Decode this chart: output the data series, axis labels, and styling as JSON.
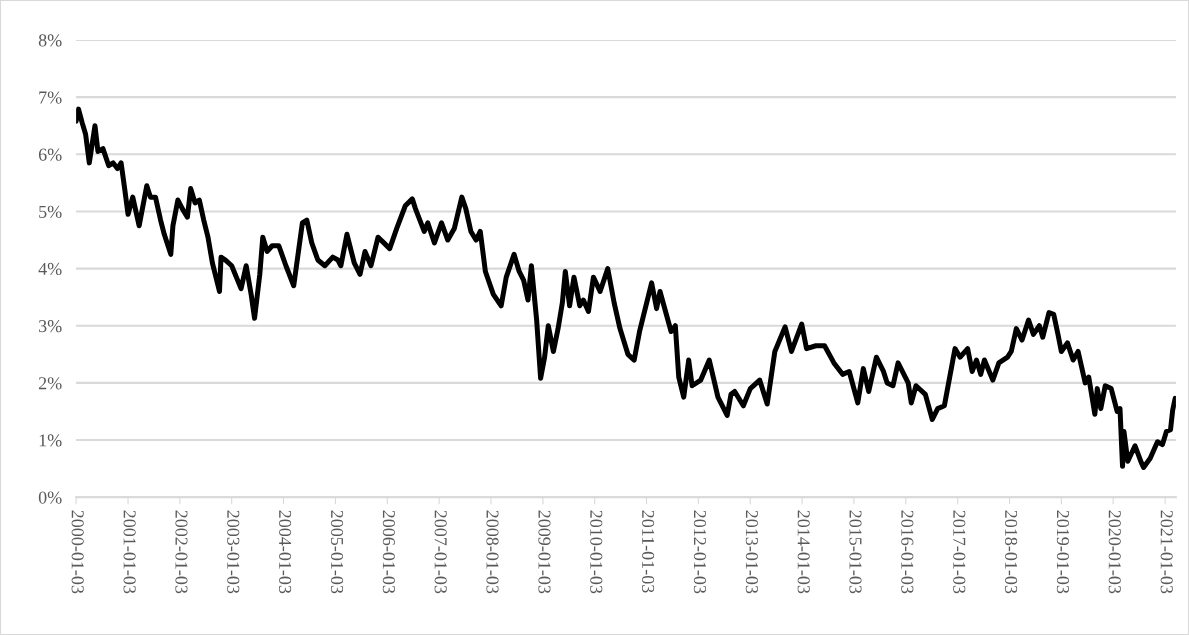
{
  "chart_data": {
    "type": "line",
    "x": [
      "2000-01-03",
      "2000-01-20",
      "2000-02-15",
      "2000-03-10",
      "2000-04-05",
      "2000-05-15",
      "2000-06-05",
      "2000-07-10",
      "2000-08-20",
      "2000-09-20",
      "2000-10-20",
      "2000-11-15",
      "2000-12-10",
      "2001-01-03",
      "2001-02-05",
      "2001-03-22",
      "2001-05-15",
      "2001-06-10",
      "2001-07-15",
      "2001-08-20",
      "2001-09-15",
      "2001-10-31",
      "2001-11-15",
      "2001-12-20",
      "2002-01-20",
      "2002-02-25",
      "2002-03-20",
      "2002-04-20",
      "2002-05-20",
      "2002-06-20",
      "2002-07-20",
      "2002-08-20",
      "2002-10-09",
      "2002-10-20",
      "2002-11-20",
      "2003-01-03",
      "2003-03-10",
      "2003-04-15",
      "2003-05-20",
      "2003-06-13",
      "2003-07-20",
      "2003-08-10",
      "2003-09-10",
      "2003-10-15",
      "2003-12-01",
      "2004-01-20",
      "2004-03-15",
      "2004-04-20",
      "2004-05-15",
      "2004-06-15",
      "2004-07-20",
      "2004-09-01",
      "2004-10-20",
      "2004-12-15",
      "2005-01-20",
      "2005-02-10",
      "2005-03-25",
      "2005-05-15",
      "2005-06-25",
      "2005-07-30",
      "2005-09-10",
      "2005-10-30",
      "2005-12-10",
      "2006-01-20",
      "2006-03-10",
      "2006-05-10",
      "2006-06-28",
      "2006-07-20",
      "2006-09-20",
      "2006-10-15",
      "2006-12-01",
      "2007-01-20",
      "2007-03-05",
      "2007-04-20",
      "2007-06-12",
      "2007-07-10",
      "2007-08-15",
      "2007-09-20",
      "2007-10-20",
      "2007-11-25",
      "2008-01-20",
      "2008-03-15",
      "2008-04-20",
      "2008-06-14",
      "2008-07-20",
      "2008-08-20",
      "2008-09-20",
      "2008-10-14",
      "2008-11-20",
      "2008-12-18",
      "2009-01-15",
      "2009-02-10",
      "2009-03-18",
      "2009-04-20",
      "2009-05-20",
      "2009-06-10",
      "2009-07-10",
      "2009-08-10",
      "2009-09-20",
      "2009-10-15",
      "2009-11-20",
      "2009-12-25",
      "2010-02-10",
      "2010-04-05",
      "2010-05-20",
      "2010-06-30",
      "2010-08-25",
      "2010-10-08",
      "2010-11-15",
      "2011-02-08",
      "2011-03-15",
      "2011-04-08",
      "2011-06-25",
      "2011-07-25",
      "2011-08-18",
      "2011-09-22",
      "2011-10-27",
      "2011-11-20",
      "2012-01-20",
      "2012-03-20",
      "2012-05-20",
      "2012-07-24",
      "2012-08-20",
      "2012-09-15",
      "2012-11-15",
      "2013-01-03",
      "2013-03-10",
      "2013-05-02",
      "2013-06-25",
      "2013-09-05",
      "2013-10-20",
      "2013-12-31",
      "2014-02-03",
      "2014-04-10",
      "2014-06-10",
      "2014-08-15",
      "2014-10-15",
      "2014-12-01",
      "2015-01-30",
      "2015-03-10",
      "2015-04-17",
      "2015-06-10",
      "2015-07-30",
      "2015-08-25",
      "2015-10-05",
      "2015-11-10",
      "2016-01-20",
      "2016-02-11",
      "2016-03-15",
      "2016-05-20",
      "2016-07-08",
      "2016-08-15",
      "2016-10-01",
      "2016-11-30",
      "2016-12-15",
      "2017-01-20",
      "2017-03-14",
      "2017-04-15",
      "2017-05-15",
      "2017-06-14",
      "2017-07-10",
      "2017-09-07",
      "2017-10-20",
      "2017-12-20",
      "2018-01-15",
      "2018-02-20",
      "2018-04-01",
      "2018-05-17",
      "2018-06-20",
      "2018-08-01",
      "2018-08-25",
      "2018-10-08",
      "2018-11-10",
      "2018-12-10",
      "2019-01-03",
      "2019-02-15",
      "2019-03-27",
      "2019-05-01",
      "2019-06-20",
      "2019-07-15",
      "2019-08-27",
      "2019-09-13",
      "2019-10-08",
      "2019-11-08",
      "2019-12-20",
      "2020-01-31",
      "2020-02-20",
      "2020-03-09",
      "2020-03-19",
      "2020-04-15",
      "2020-06-05",
      "2020-07-20",
      "2020-08-04",
      "2020-09-20",
      "2020-11-10",
      "2020-12-15",
      "2021-01-12",
      "2021-02-10",
      "2021-02-25",
      "2021-03-15"
    ],
    "series": [
      {
        "color": "#000000",
        "values": [
          6.58,
          6.79,
          6.55,
          6.35,
          5.85,
          6.5,
          6.05,
          6.1,
          5.8,
          5.85,
          5.75,
          5.85,
          5.4,
          4.95,
          5.25,
          4.75,
          5.45,
          5.25,
          5.25,
          4.85,
          4.6,
          4.25,
          4.75,
          5.2,
          5.05,
          4.9,
          5.4,
          5.15,
          5.2,
          4.85,
          4.55,
          4.1,
          3.6,
          4.2,
          4.15,
          4.05,
          3.65,
          4.05,
          3.55,
          3.13,
          3.9,
          4.55,
          4.3,
          4.4,
          4.4,
          4.05,
          3.7,
          4.35,
          4.8,
          4.85,
          4.45,
          4.15,
          4.05,
          4.2,
          4.15,
          4.05,
          4.6,
          4.1,
          3.9,
          4.3,
          4.05,
          4.55,
          4.45,
          4.35,
          4.7,
          5.1,
          5.22,
          5.05,
          4.65,
          4.8,
          4.45,
          4.8,
          4.5,
          4.7,
          5.25,
          5.05,
          4.65,
          4.5,
          4.65,
          3.95,
          3.55,
          3.35,
          3.85,
          4.25,
          3.95,
          3.8,
          3.45,
          4.05,
          3.1,
          2.08,
          2.45,
          3.0,
          2.55,
          2.95,
          3.4,
          3.95,
          3.35,
          3.85,
          3.35,
          3.45,
          3.25,
          3.85,
          3.6,
          4.0,
          3.4,
          2.95,
          2.5,
          2.4,
          2.9,
          3.75,
          3.3,
          3.6,
          2.9,
          3.0,
          2.1,
          1.75,
          2.4,
          1.95,
          2.05,
          2.4,
          1.75,
          1.43,
          1.8,
          1.85,
          1.6,
          1.9,
          2.05,
          1.63,
          2.55,
          2.98,
          2.55,
          3.03,
          2.6,
          2.65,
          2.65,
          2.35,
          2.15,
          2.2,
          1.65,
          2.25,
          1.85,
          2.45,
          2.2,
          2.0,
          1.95,
          2.35,
          2.0,
          1.65,
          1.95,
          1.8,
          1.36,
          1.55,
          1.6,
          2.4,
          2.6,
          2.45,
          2.6,
          2.2,
          2.4,
          2.15,
          2.4,
          2.05,
          2.35,
          2.45,
          2.55,
          2.95,
          2.75,
          3.1,
          2.85,
          3.0,
          2.8,
          3.23,
          3.2,
          2.85,
          2.55,
          2.7,
          2.4,
          2.55,
          2.0,
          2.1,
          1.45,
          1.9,
          1.55,
          1.95,
          1.9,
          1.5,
          1.55,
          0.54,
          1.15,
          0.63,
          0.9,
          0.6,
          0.52,
          0.68,
          0.97,
          0.92,
          1.15,
          1.18,
          1.52,
          1.73
        ]
      }
    ],
    "xlim": [
      "2000-01-03",
      "2021-03-20"
    ],
    "xticks": [
      "2000-01-03",
      "2001-01-03",
      "2002-01-03",
      "2003-01-03",
      "2004-01-03",
      "2005-01-03",
      "2006-01-03",
      "2007-01-03",
      "2008-01-03",
      "2009-01-03",
      "2010-01-03",
      "2011-01-03",
      "2012-01-03",
      "2013-01-03",
      "2014-01-03",
      "2015-01-03",
      "2016-01-03",
      "2017-01-03",
      "2018-01-03",
      "2019-01-03",
      "2020-01-03",
      "2021-01-03"
    ],
    "ylim": [
      0,
      8
    ],
    "yticks": [
      {
        "value": 0,
        "label": "0%"
      },
      {
        "value": 1,
        "label": "1%"
      },
      {
        "value": 2,
        "label": "2%"
      },
      {
        "value": 3,
        "label": "3%"
      },
      {
        "value": 4,
        "label": "4%"
      },
      {
        "value": 5,
        "label": "5%"
      },
      {
        "value": 6,
        "label": "6%"
      },
      {
        "value": 7,
        "label": "7%"
      },
      {
        "value": 8,
        "label": "8%"
      }
    ],
    "grid": "y",
    "legend": false,
    "marker": "none",
    "line_style": "solid"
  }
}
